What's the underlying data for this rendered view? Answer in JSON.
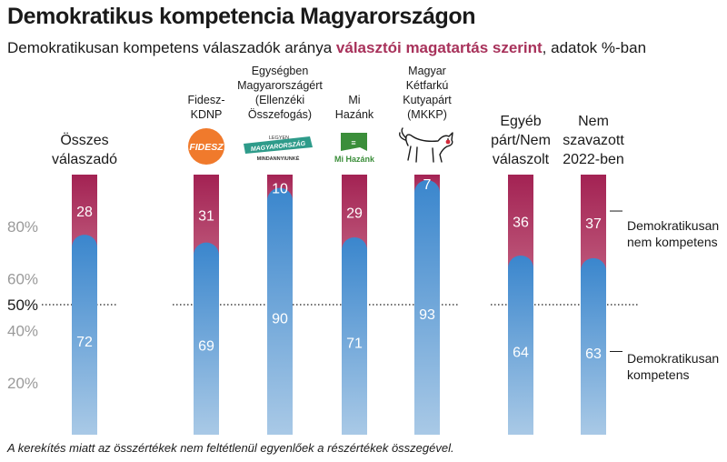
{
  "header": {
    "title": "Demokratikus kompetencia Magyarországon",
    "subtitle_pre": "Demokratikusan kompetens válaszadók aránya ",
    "subtitle_highlight": "választói magatartás szerint",
    "subtitle_post": ", adatok %-ban"
  },
  "footnote": "A kerekítés miatt az összértékek nem feltétlenül egyenlőek a részértékek összegével.",
  "colors": {
    "competent_top": "#3a86cd",
    "competent_bottom": "#a9c9e6",
    "not_competent_top": "#a32253",
    "not_competent_bottom": "#c05d7e",
    "fidesz_logo": "#f07a2c",
    "egyseg_logo": "#2e9b8a",
    "mihazank_logo": "#3b8e3a"
  },
  "logos": {
    "fidesz": "FIDESZ",
    "egyseg_line1": "LEGYEN",
    "egyseg_line2": "MAGYARORSZÁG",
    "egyseg_line3": "MINDANNYIUNKÉ",
    "mihazank": "Mi Hazánk"
  },
  "chart_data": {
    "type": "bar",
    "stacked": true,
    "ylim": [
      0,
      100
    ],
    "ticks": [
      "20%",
      "40%",
      "50%",
      "60%",
      "80%"
    ],
    "reference_line": 50,
    "categories": [
      "Összes válaszadó",
      "Fidesz-KDNP",
      "Egységben Magyarországért (Ellenzéki Összefogás)",
      "Mi Hazánk",
      "Magyar Kétfarkú Kutyapárt (MKKP)",
      "Egyéb párt/Nem válaszolt",
      "Nem szavazott 2022-ben"
    ],
    "category_label_lines": [
      [
        "Összes",
        "válaszadó"
      ],
      [
        "Fidesz-",
        "KDNP"
      ],
      [
        "Egységben",
        "Magyarországért",
        "(Ellenzéki",
        "Összefogás)"
      ],
      [
        "Mi",
        "Hazánk"
      ],
      [
        "Magyar",
        "Kétfarkú",
        "Kutyapárt",
        "(MKKP)"
      ],
      [
        "Egyéb",
        "párt/Nem",
        "válaszolt"
      ],
      [
        "Nem",
        "szavazott",
        "2022-ben"
      ]
    ],
    "series": [
      {
        "name": "Demokratikusan kompetens",
        "values": [
          72,
          69,
          90,
          71,
          93,
          64,
          63
        ]
      },
      {
        "name": "Demokratikusan nem kompetens",
        "values": [
          28,
          31,
          10,
          29,
          7,
          36,
          37
        ]
      }
    ],
    "legend": [
      [
        "Demokratikusan",
        "nem kompetens"
      ],
      [
        "Demokratikusan",
        "kompetens"
      ]
    ]
  }
}
